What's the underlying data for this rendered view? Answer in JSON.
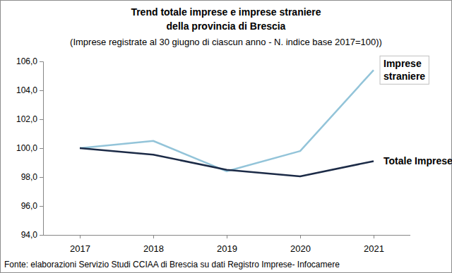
{
  "chart_data": {
    "type": "line",
    "title": [
      "Trend totale imprese e imprese straniere",
      "della provincia di Brescia"
    ],
    "subtitle": "(Imprese registrate al 30 giugno di ciascun anno - N. indice base 2017=100))",
    "source": "Fonte: elaborazioni Servizio Studi CCIAA di Brescia su dati Registro Imprese- Infocamere",
    "categories": [
      "2017",
      "2018",
      "2019",
      "2020",
      "2021"
    ],
    "series": [
      {
        "name": "Imprese straniere",
        "color": "#93c4d9",
        "values": [
          100.0,
          100.5,
          98.4,
          99.8,
          105.4
        ]
      },
      {
        "name": "Totale Imprese",
        "color": "#1c2b47",
        "values": [
          100.0,
          99.55,
          98.5,
          98.05,
          99.1
        ]
      }
    ],
    "ylim": [
      94,
      106
    ],
    "yticks": [
      {
        "value": 94,
        "label": "94,0"
      },
      {
        "value": 96,
        "label": "96,0"
      },
      {
        "value": 98,
        "label": "98,0"
      },
      {
        "value": 100,
        "label": "100,0"
      },
      {
        "value": 102,
        "label": "102,0"
      },
      {
        "value": 104,
        "label": "104,0"
      },
      {
        "value": 106,
        "label": "106,0"
      }
    ],
    "grid": false
  }
}
